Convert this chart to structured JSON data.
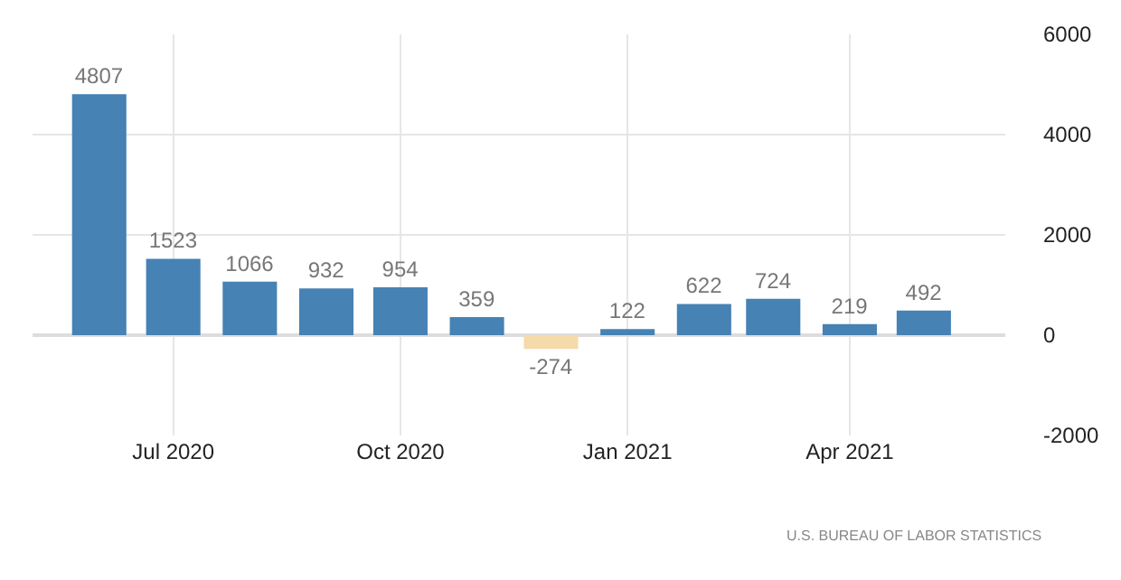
{
  "chart_data": {
    "type": "bar",
    "x": [
      "2020-06",
      "2020-07",
      "2020-08",
      "2020-09",
      "2020-10",
      "2020-11",
      "2020-12",
      "2021-01",
      "2021-02",
      "2021-03",
      "2021-04",
      "2021-05"
    ],
    "values": [
      4807,
      1523,
      1066,
      932,
      954,
      359,
      -274,
      122,
      622,
      724,
      219,
      492
    ],
    "colors": [
      "#4682b4",
      "#4682b4",
      "#4682b4",
      "#4682b4",
      "#4682b4",
      "#4682b4",
      "#f5dbab",
      "#4682b4",
      "#4682b4",
      "#4682b4",
      "#4682b4",
      "#4682b4"
    ],
    "data_labels": true,
    "xlim": [
      "2020-05-05",
      "2021-06-03"
    ],
    "xticks": [
      {
        "value": "2020-07",
        "label": "Jul 2020"
      },
      {
        "value": "2020-10",
        "label": "Oct 2020"
      },
      {
        "value": "2021-01",
        "label": "Jan 2021"
      },
      {
        "value": "2021-04",
        "label": "Apr 2021"
      }
    ],
    "ylim": [
      -2000,
      6000
    ],
    "yticks": [
      -2000,
      0,
      2000,
      4000,
      6000
    ],
    "grid": true,
    "annotations": [
      "U.S. BUREAU OF LABOR STATISTICS"
    ]
  }
}
